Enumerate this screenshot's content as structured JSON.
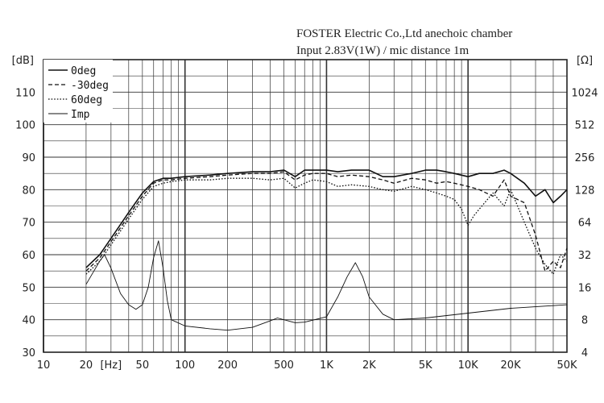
{
  "header": {
    "line1": "FOSTER Electric Co.,Ltd  anechoic chamber",
    "line2": "Input 2.83V(1W) / mic distance 1m"
  },
  "chart_data": {
    "type": "line",
    "xscale": "log",
    "xlim": [
      10,
      50000
    ],
    "ylim": [
      30,
      120
    ],
    "y2scale": "log2",
    "y2lim": [
      4,
      2048
    ],
    "grid": true,
    "legend_position": "top-left",
    "ylabel": "[dB]",
    "y2label": "[Ω]",
    "x_unit_label": "[Hz]",
    "x_ticks": [
      {
        "v": 10,
        "label": "10"
      },
      {
        "v": 20,
        "label": "20"
      },
      {
        "v": 50,
        "label": "50"
      },
      {
        "v": 100,
        "label": "100"
      },
      {
        "v": 200,
        "label": "200"
      },
      {
        "v": 500,
        "label": "500"
      },
      {
        "v": 1000,
        "label": "1K"
      },
      {
        "v": 2000,
        "label": "2K"
      },
      {
        "v": 5000,
        "label": "5K"
      },
      {
        "v": 10000,
        "label": "10K"
      },
      {
        "v": 20000,
        "label": "20K"
      },
      {
        "v": 50000,
        "label": "50K"
      }
    ],
    "y_ticks": [
      30,
      40,
      50,
      60,
      70,
      80,
      90,
      100,
      110
    ],
    "y2_ticks": [
      4,
      8,
      16,
      32,
      64,
      128,
      256,
      512,
      1024
    ],
    "series": [
      {
        "name": "0deg",
        "style": "solid",
        "axis": "left",
        "x": [
          20,
          25,
          30,
          40,
          50,
          60,
          70,
          80,
          100,
          150,
          200,
          300,
          400,
          500,
          600,
          700,
          800,
          1000,
          1200,
          1500,
          2000,
          2500,
          3000,
          4000,
          5000,
          6000,
          7000,
          8000,
          10000,
          12000,
          15000,
          18000,
          20000,
          25000,
          30000,
          35000,
          40000,
          45000,
          50000
        ],
        "y": [
          56,
          60,
          65,
          73,
          79,
          82.5,
          83.5,
          83.5,
          84,
          84.5,
          85,
          85.5,
          85.5,
          86,
          84,
          86,
          86,
          86,
          85.5,
          86,
          86,
          84,
          84,
          85,
          86,
          86,
          85.5,
          85,
          84,
          85,
          85,
          86,
          85,
          82,
          78,
          80,
          76,
          78,
          80
        ]
      },
      {
        "name": "-30deg",
        "style": "dashed",
        "axis": "left",
        "x": [
          20,
          25,
          30,
          40,
          50,
          60,
          70,
          80,
          100,
          150,
          200,
          300,
          400,
          500,
          600,
          700,
          800,
          1000,
          1200,
          1500,
          2000,
          2500,
          3000,
          4000,
          5000,
          6000,
          7000,
          8000,
          10000,
          12000,
          15000,
          18000,
          20000,
          25000,
          30000,
          35000,
          40000,
          45000,
          50000
        ],
        "y": [
          55,
          59,
          64,
          72,
          78,
          82,
          83,
          83,
          83.5,
          84,
          84.5,
          85,
          85,
          85.5,
          83,
          84.5,
          85,
          85,
          84,
          84.5,
          84,
          83,
          82,
          83.5,
          83,
          82,
          82.5,
          82,
          81,
          80,
          78,
          83,
          78,
          76,
          66,
          55,
          58,
          56,
          62
        ]
      },
      {
        "name": "60deg",
        "style": "dotted",
        "axis": "left",
        "x": [
          20,
          25,
          30,
          40,
          50,
          60,
          70,
          80,
          100,
          150,
          200,
          300,
          400,
          500,
          600,
          700,
          800,
          1000,
          1200,
          1500,
          2000,
          2500,
          3000,
          4000,
          5000,
          6000,
          7000,
          8000,
          9000,
          10000,
          11000,
          12000,
          15000,
          18000,
          20000,
          25000,
          30000,
          35000,
          40000,
          45000,
          50000
        ],
        "y": [
          54,
          58,
          63,
          71,
          77,
          81,
          82,
          82.5,
          83,
          83,
          83.5,
          83.5,
          83,
          83.5,
          80.5,
          82,
          83,
          82.5,
          81,
          81.5,
          81,
          80,
          79.5,
          81,
          80,
          79,
          78,
          77,
          74,
          69,
          72,
          74,
          79,
          75,
          80,
          70,
          62,
          57,
          54,
          60,
          58
        ]
      },
      {
        "name": "Imp",
        "style": "thin",
        "axis": "right",
        "unit": "ohm",
        "x": [
          20,
          25,
          27,
          30,
          35,
          40,
          45,
          50,
          55,
          60,
          65,
          70,
          75,
          80,
          100,
          150,
          200,
          300,
          400,
          450,
          500,
          600,
          700,
          1000,
          1200,
          1400,
          1600,
          1800,
          2000,
          2500,
          3000,
          5000,
          10000,
          20000,
          50000
        ],
        "y": [
          17,
          28,
          32,
          24,
          14,
          11,
          10,
          11,
          16,
          30,
          43,
          24,
          12,
          8,
          7,
          6.6,
          6.4,
          6.8,
          7.8,
          8.3,
          8.0,
          7.5,
          7.6,
          8.5,
          13,
          20,
          27,
          20,
          13,
          9,
          8,
          8.3,
          9.2,
          10.2,
          11
        ]
      }
    ]
  }
}
